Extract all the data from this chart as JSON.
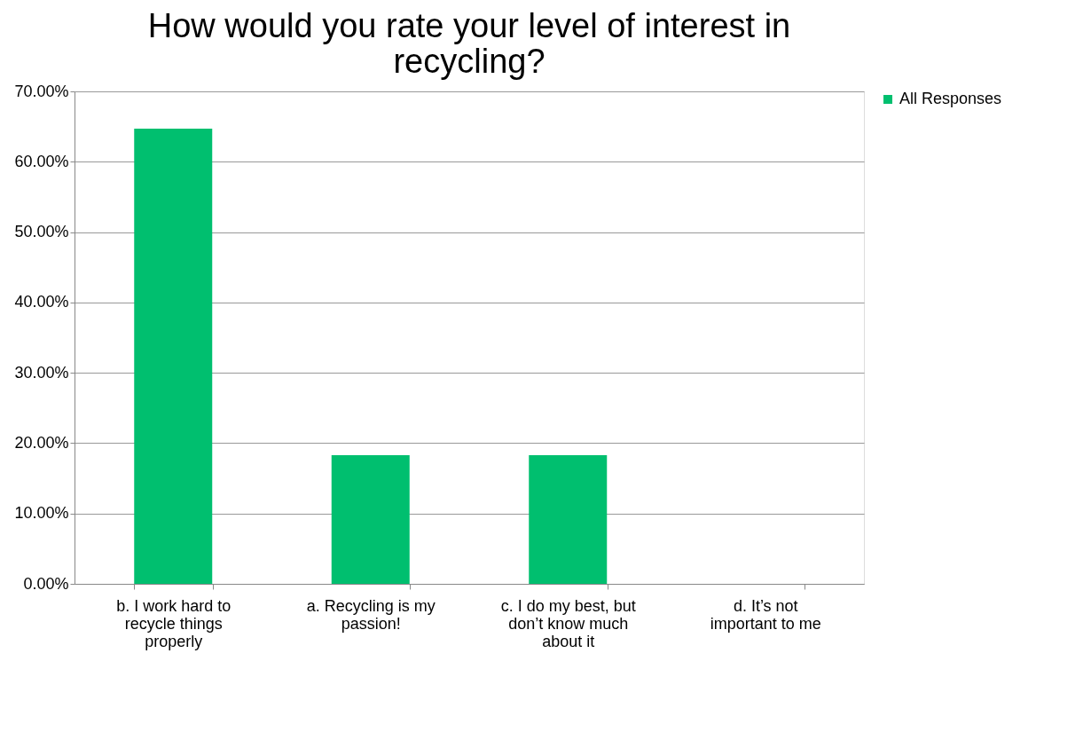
{
  "chart_data": {
    "type": "bar",
    "title": "How would you rate your level of interest in recycling?",
    "categories": [
      "b. I work hard to recycle things properly",
      "a. Recycling is my passion!",
      "c. I do my best, but don’t know much about it",
      "d. It’s not important to me"
    ],
    "series": [
      {
        "name": "All Responses",
        "color": "#00bf6f",
        "values": [
          64.7,
          18.3,
          18.3,
          0
        ]
      }
    ],
    "ylim": [
      0,
      70
    ],
    "yticks": [
      {
        "value": 0,
        "label": "0.00%"
      },
      {
        "value": 10,
        "label": "10.00%"
      },
      {
        "value": 20,
        "label": "20.00%"
      },
      {
        "value": 30,
        "label": "30.00%"
      },
      {
        "value": 40,
        "label": "40.00%"
      },
      {
        "value": 50,
        "label": "50.00%"
      },
      {
        "value": 60,
        "label": "60.00%"
      },
      {
        "value": 70,
        "label": "70.00%"
      }
    ],
    "grid": "y",
    "legend": "right"
  }
}
